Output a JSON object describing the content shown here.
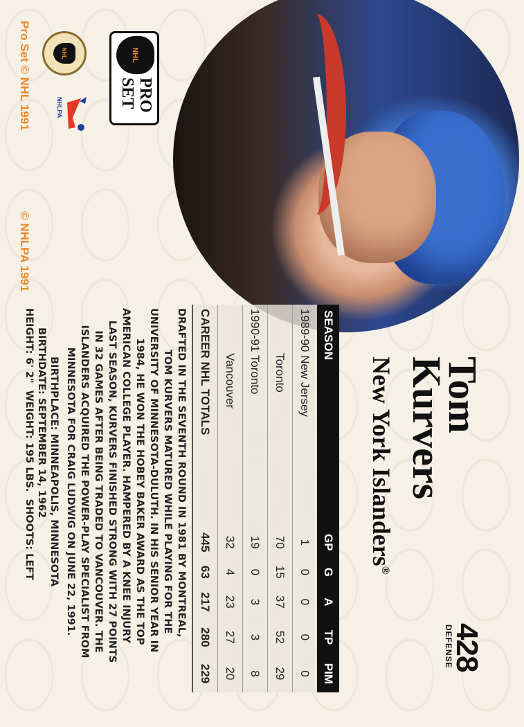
{
  "player": {
    "first_name": "Tom",
    "last_name": "Kurvers",
    "team": "New York Islanders",
    "registered_mark": "®",
    "card_number": "428",
    "position": "DEFENSE"
  },
  "stats": {
    "headers": [
      "SEASON",
      "GP",
      "G",
      "A",
      "TP",
      "PIM"
    ],
    "rows": [
      {
        "season": "1989-90 New Jersey",
        "gp": "1",
        "g": "0",
        "a": "0",
        "tp": "0",
        "pim": "0"
      },
      {
        "season": "Toronto",
        "gp": "70",
        "g": "15",
        "a": "37",
        "tp": "52",
        "pim": "29"
      },
      {
        "season": "1990-91 Toronto",
        "gp": "19",
        "g": "0",
        "a": "3",
        "tp": "3",
        "pim": "8"
      },
      {
        "season": "Vancouver",
        "gp": "32",
        "g": "4",
        "a": "23",
        "tp": "27",
        "pim": "20"
      }
    ],
    "totals": {
      "season": "CAREER NHL TOTALS",
      "gp": "445",
      "g": "63",
      "a": "217",
      "tp": "280",
      "pim": "229"
    }
  },
  "bio_lines": [
    "Drafted in the seventh round in 1981 by Montreal,",
    "Tom Kurvers matured while playing for the",
    "University of Minnesota-Duluth. In his senior year in",
    "1984, he won the Hobey Baker Award as the top",
    "American college player. Hampered by a knee injury",
    "last season, Kurvers finished strong with 27 points",
    "in 32 games after being traded to Vancouver. The",
    "Islanders acquired the power-play specialist from",
    "Minnesota for Craig Ludwig on June 22, 1991."
  ],
  "facts": {
    "birthplace": "BIRTHPLACE: MINNEAPOLIS, MINNESOTA",
    "birthdate": "BIRTHDATE: SEPTEMBER 14, 1962",
    "physical": "HEIGHT: 6' 2\"  WEIGHT: 195 LBS.  SHOOTS: LEFT"
  },
  "copyright": {
    "proset": "Pro Set © NHL 1991",
    "nhlpa": "© NHLPA 1991"
  },
  "logos": {
    "proset_text": "PRO SET",
    "nhl_text": "NHL",
    "nhlpa_text": "NHLPA"
  },
  "colors": {
    "copyright": "#e8892e",
    "header_bg": "#111111",
    "card_bg": "#f6f1e6"
  }
}
